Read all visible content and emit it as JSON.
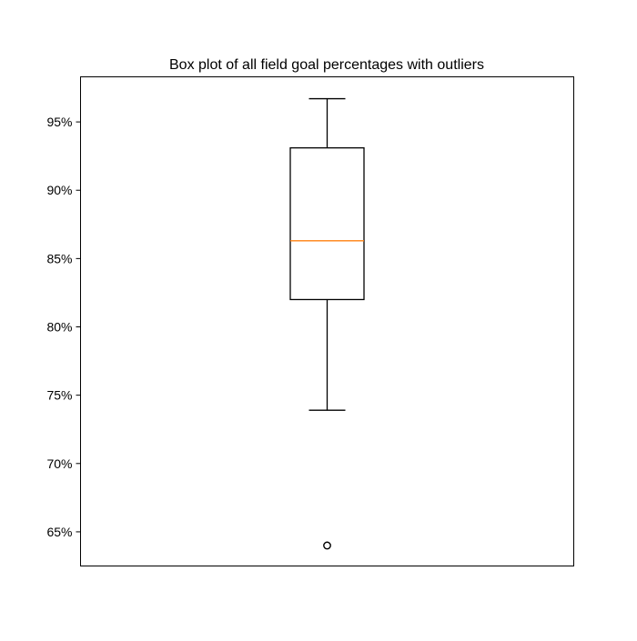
{
  "chart_data": {
    "type": "box",
    "title": "Box plot of all field goal percentages with outliers",
    "xlabel": "",
    "ylabel": "",
    "ylim": [
      62.5,
      98.3
    ],
    "y_ticks": [
      65,
      70,
      75,
      80,
      85,
      90,
      95
    ],
    "y_tick_labels": [
      "65%",
      "70%",
      "75%",
      "80%",
      "85%",
      "90%",
      "95%"
    ],
    "grid": false,
    "boxes": [
      {
        "whisker_low": 73.9,
        "q1": 82.0,
        "median": 86.3,
        "q3": 93.1,
        "whisker_high": 96.7,
        "outliers": [
          64.0
        ]
      }
    ],
    "colors": {
      "box": "#000000",
      "median": "#ff7f0e",
      "whisker": "#000000",
      "outlier": "#000000"
    }
  }
}
